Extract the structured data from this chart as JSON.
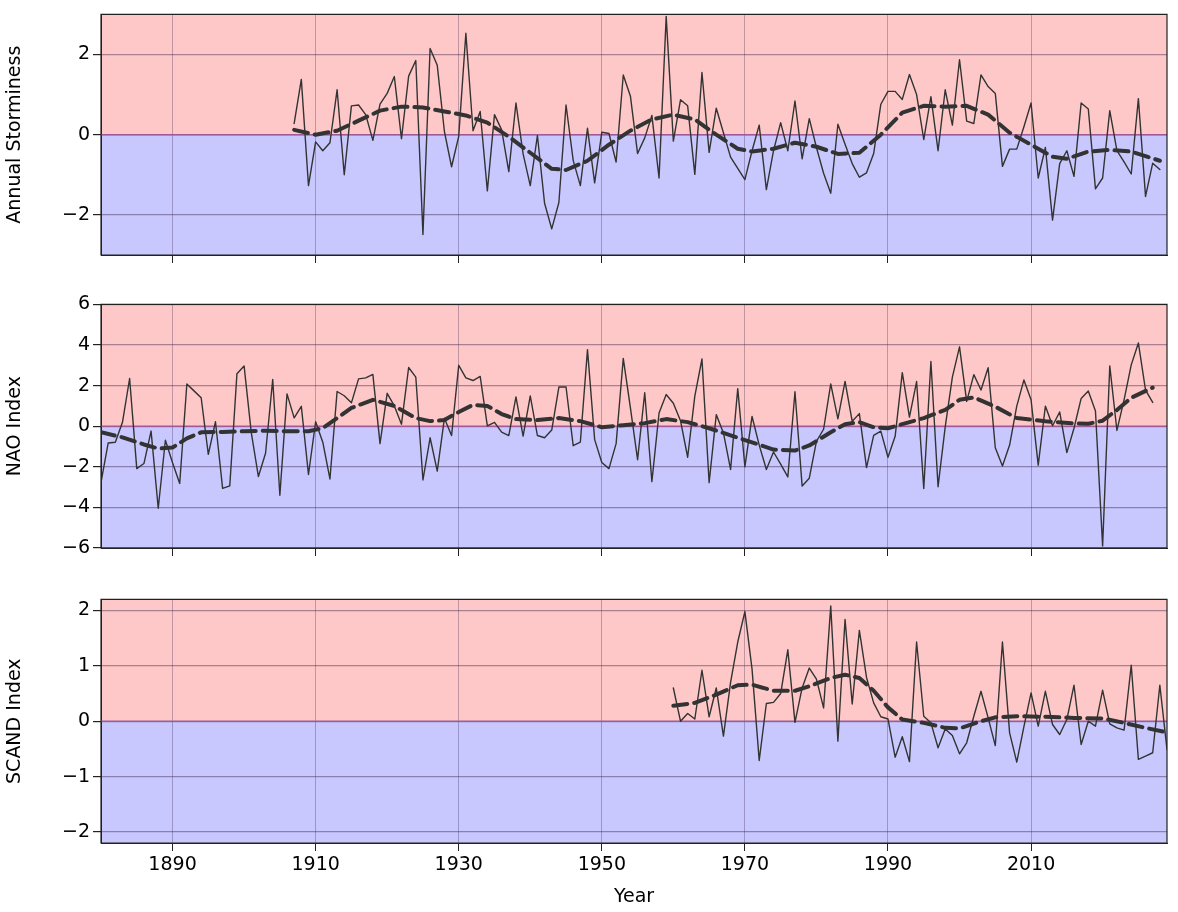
{
  "chart_data": [
    {
      "type": "line",
      "ylabel": "Annual Storminess",
      "xlim": [
        1880,
        2029
      ],
      "xticks": [
        1890,
        1910,
        1930,
        1950,
        1970,
        1990,
        2010
      ],
      "ylim": [
        -3,
        3
      ],
      "yticks": [
        {
          "value": -2,
          "label": "−2"
        },
        0,
        2
      ],
      "grid": true,
      "tick_labels": "y",
      "marker": "none",
      "bands": [
        {
          "axis": "y",
          "from": 0,
          "to": 3,
          "color": "#ffc8c8"
        },
        {
          "axis": "y",
          "from": -3,
          "to": 0,
          "color": "#c8c8ff"
        }
      ],
      "ref_lines": [
        {
          "axis": "y",
          "value": 0,
          "color": "#a05a9a"
        }
      ],
      "series": [
        {
          "type": "line",
          "line_style": "solid",
          "color": "#333333",
          "x": [
            1907,
            1908,
            1909,
            1910,
            1911,
            1912,
            1913,
            1914,
            1915,
            1916,
            1917,
            1918,
            1919,
            1920,
            1921,
            1922,
            1923,
            1924,
            1925,
            1926,
            1927,
            1928,
            1929,
            1930,
            1931,
            1932,
            1933,
            1934,
            1935,
            1936,
            1937,
            1938,
            1939,
            1940,
            1941,
            1942,
            1943,
            1944,
            1945,
            1946,
            1947,
            1948,
            1949,
            1950,
            1951,
            1952,
            1953,
            1954,
            1955,
            1956,
            1957,
            1958,
            1959,
            1960,
            1961,
            1962,
            1963,
            1964,
            1965,
            1966,
            1967,
            1968,
            1969,
            1970,
            1971,
            1972,
            1973,
            1974,
            1975,
            1976,
            1977,
            1978,
            1979,
            1980,
            1981,
            1982,
            1983,
            1984,
            1985,
            1986,
            1987,
            1988,
            1989,
            1990,
            1991,
            1992,
            1993,
            1994,
            1995,
            1996,
            1997,
            1998,
            1999,
            2000,
            2001,
            2002,
            2003,
            2004,
            2005,
            2006,
            2007,
            2008,
            2009,
            2010,
            2011,
            2012,
            2013,
            2014,
            2015,
            2016,
            2017,
            2018,
            2019,
            2020,
            2021,
            2022,
            2023,
            2024,
            2025,
            2026,
            2027,
            2028
          ],
          "values": [
            0.28,
            1.38,
            -1.27,
            -0.18,
            -0.4,
            -0.2,
            1.12,
            -1.0,
            0.72,
            0.74,
            0.5,
            -0.14,
            0.76,
            1.03,
            1.45,
            -0.1,
            1.46,
            1.85,
            -2.49,
            2.15,
            1.73,
            0.08,
            -0.8,
            -0.04,
            2.53,
            0.1,
            0.58,
            -1.4,
            0.5,
            0.12,
            -0.92,
            0.79,
            -0.48,
            -1.27,
            -0.02,
            -1.71,
            -2.35,
            -1.69,
            0.74,
            -0.64,
            -1.27,
            0.16,
            -1.2,
            0.06,
            0.03,
            -0.68,
            1.49,
            0.96,
            -0.47,
            -0.08,
            0.48,
            -1.08,
            2.95,
            -0.16,
            0.87,
            0.72,
            -0.99,
            1.55,
            -0.44,
            0.66,
            0.05,
            -0.56,
            -0.84,
            -1.12,
            -0.4,
            0.24,
            -1.37,
            -0.4,
            0.3,
            -0.4,
            0.84,
            -0.6,
            0.4,
            -0.32,
            -0.96,
            -1.46,
            0.26,
            -0.24,
            -0.72,
            -1.06,
            -0.95,
            -0.47,
            0.76,
            1.08,
            1.08,
            0.88,
            1.5,
            1.0,
            -0.12,
            0.95,
            -0.4,
            1.12,
            0.24,
            1.87,
            0.34,
            0.28,
            1.49,
            1.2,
            1.03,
            -0.79,
            -0.36,
            -0.36,
            0.2,
            0.79,
            -1.08,
            -0.32,
            -2.13,
            -0.72,
            -0.4,
            -1.04,
            0.79,
            0.64,
            -1.35,
            -1.08,
            0.6,
            -0.4,
            -0.68,
            -0.98,
            0.9,
            -1.54,
            -0.71,
            -0.87
          ]
        },
        {
          "type": "line",
          "line_style": "dashed",
          "color": "#333333",
          "x": [
            1907,
            1910,
            1913,
            1916,
            1919,
            1922,
            1925,
            1928,
            1931,
            1934,
            1937,
            1940,
            1943,
            1945,
            1948,
            1951,
            1954,
            1957,
            1960,
            1963,
            1966,
            1969,
            1971,
            1974,
            1977,
            1980,
            1983,
            1986,
            1989,
            1992,
            1995,
            1998,
            2001,
            2004,
            2007,
            2010,
            2013,
            2015,
            2018,
            2021,
            2024,
            2028
          ],
          "values": [
            0.12,
            0.0,
            0.1,
            0.35,
            0.6,
            0.7,
            0.68,
            0.58,
            0.48,
            0.3,
            -0.05,
            -0.45,
            -0.85,
            -0.88,
            -0.65,
            -0.25,
            0.1,
            0.38,
            0.5,
            0.38,
            0.0,
            -0.35,
            -0.42,
            -0.35,
            -0.2,
            -0.3,
            -0.48,
            -0.45,
            0.0,
            0.55,
            0.72,
            0.7,
            0.72,
            0.5,
            0.05,
            -0.25,
            -0.55,
            -0.6,
            -0.42,
            -0.38,
            -0.42,
            -0.65
          ]
        }
      ]
    },
    {
      "type": "line",
      "ylabel": "NAO Index",
      "xlim": [
        1880,
        2029
      ],
      "xticks": [
        1890,
        1910,
        1930,
        1950,
        1970,
        1990,
        2010
      ],
      "ylim": [
        -6,
        6
      ],
      "yticks": [
        {
          "value": -6,
          "label": "−6"
        },
        {
          "value": -4,
          "label": "−4"
        },
        {
          "value": -2,
          "label": "−2"
        },
        0,
        2,
        4,
        6
      ],
      "grid": true,
      "tick_labels": "y",
      "marker": "none",
      "bands": [
        {
          "axis": "y",
          "from": 0,
          "to": 6,
          "color": "#ffc8c8"
        },
        {
          "axis": "y",
          "from": -6,
          "to": 0,
          "color": "#c8c8ff"
        }
      ],
      "ref_lines": [
        {
          "axis": "y",
          "value": 0,
          "color": "#a05a9a"
        }
      ],
      "series": [
        {
          "type": "line",
          "line_style": "solid",
          "color": "#333333",
          "x": [
            1880,
            1881,
            1882,
            1883,
            1884,
            1885,
            1886,
            1887,
            1888,
            1889,
            1890,
            1891,
            1892,
            1893,
            1894,
            1895,
            1896,
            1897,
            1898,
            1899,
            1900,
            1901,
            1902,
            1903,
            1904,
            1905,
            1906,
            1907,
            1908,
            1909,
            1910,
            1911,
            1912,
            1913,
            1914,
            1915,
            1916,
            1917,
            1918,
            1919,
            1920,
            1921,
            1922,
            1923,
            1924,
            1925,
            1926,
            1927,
            1928,
            1929,
            1930,
            1931,
            1932,
            1933,
            1934,
            1935,
            1936,
            1937,
            1938,
            1939,
            1940,
            1941,
            1942,
            1943,
            1944,
            1945,
            1946,
            1947,
            1948,
            1949,
            1950,
            1951,
            1952,
            1953,
            1954,
            1955,
            1956,
            1957,
            1958,
            1959,
            1960,
            1961,
            1962,
            1963,
            1964,
            1965,
            1966,
            1967,
            1968,
            1969,
            1970,
            1971,
            1972,
            1973,
            1974,
            1975,
            1976,
            1977,
            1978,
            1979,
            1980,
            1981,
            1982,
            1983,
            1984,
            1985,
            1986,
            1987,
            1988,
            1989,
            1990,
            1991,
            1992,
            1993,
            1994,
            1995,
            1996,
            1997,
            1998,
            1999,
            2000,
            2001,
            2002,
            2003,
            2004,
            2005,
            2006,
            2007,
            2008,
            2009,
            2010,
            2011,
            2012,
            2013,
            2014,
            2015,
            2016,
            2017,
            2018,
            2019,
            2020,
            2021,
            2022,
            2023,
            2024,
            2025,
            2026,
            2027
          ],
          "values": [
            -2.77,
            -0.83,
            -0.79,
            0.19,
            2.35,
            -2.09,
            -1.84,
            -0.24,
            -4.04,
            -0.69,
            -1.8,
            -2.82,
            2.08,
            1.74,
            1.4,
            -1.39,
            0.22,
            -3.06,
            -2.94,
            2.58,
            2.97,
            -0.3,
            -2.48,
            -1.33,
            2.3,
            -3.4,
            1.59,
            0.41,
            0.98,
            -2.38,
            0.22,
            -0.79,
            -2.6,
            1.71,
            1.5,
            1.15,
            2.33,
            2.38,
            2.55,
            -0.86,
            1.62,
            1.0,
            0.1,
            2.89,
            2.42,
            -2.65,
            -0.57,
            -2.21,
            0.39,
            -0.46,
            3.0,
            2.38,
            2.25,
            2.45,
            0.02,
            0.19,
            -0.29,
            -0.46,
            1.44,
            -0.49,
            1.49,
            -0.46,
            -0.57,
            -0.19,
            1.93,
            1.93,
            -0.96,
            -0.79,
            3.77,
            -0.66,
            -1.79,
            -2.09,
            -0.86,
            3.34,
            0.9,
            -1.65,
            1.65,
            -2.73,
            0.65,
            1.56,
            1.13,
            0.27,
            -1.53,
            1.48,
            3.31,
            -2.78,
            0.57,
            -0.33,
            -2.13,
            1.85,
            -2.0,
            0.48,
            -0.93,
            -2.13,
            -1.27,
            -1.87,
            -2.5,
            1.7,
            -2.95,
            -2.56,
            -0.75,
            -0.15,
            2.08,
            0.36,
            2.21,
            0.24,
            0.62,
            -2.04,
            -0.45,
            -0.24,
            -1.53,
            -0.5,
            2.64,
            0.45,
            2.2,
            -3.07,
            3.19,
            -2.98,
            -0.03,
            2.42,
            3.91,
            1.22,
            2.54,
            1.78,
            2.88,
            -1.06,
            -1.96,
            -0.93,
            0.99,
            2.28,
            1.3,
            -1.92,
            0.99,
            0.02,
            0.7,
            -1.3,
            -0.1,
            1.37,
            1.73,
            0.75,
            -5.9,
            2.97,
            -0.21,
            1.3,
            3.02,
            4.1,
            1.78,
            1.17
          ]
        },
        {
          "type": "line",
          "line_style": "dashed",
          "color": "#333333",
          "x": [
            1880,
            1883,
            1886,
            1888,
            1890,
            1892,
            1894,
            1897,
            1900,
            1903,
            1906,
            1909,
            1911,
            1913,
            1915,
            1918,
            1921,
            1924,
            1926,
            1928,
            1930,
            1932,
            1934,
            1936,
            1938,
            1941,
            1944,
            1947,
            1950,
            1953,
            1956,
            1959,
            1962,
            1965,
            1968,
            1971,
            1974,
            1977,
            1979,
            1982,
            1984,
            1986,
            1988,
            1990,
            1992,
            1995,
            1998,
            2000,
            2002,
            2005,
            2008,
            2012,
            2016,
            2018,
            2020,
            2022,
            2024,
            2027
          ],
          "values": [
            -0.3,
            -0.55,
            -0.9,
            -1.1,
            -1.05,
            -0.6,
            -0.3,
            -0.28,
            -0.25,
            -0.22,
            -0.25,
            -0.25,
            -0.1,
            0.4,
            0.9,
            1.3,
            1.0,
            0.4,
            0.25,
            0.3,
            0.7,
            1.05,
            1.0,
            0.6,
            0.35,
            0.3,
            0.4,
            0.25,
            -0.05,
            0.05,
            0.15,
            0.35,
            0.2,
            -0.1,
            -0.45,
            -0.8,
            -1.15,
            -1.2,
            -0.95,
            -0.3,
            0.1,
            0.2,
            -0.05,
            -0.1,
            0.1,
            0.4,
            0.8,
            1.3,
            1.42,
            0.96,
            0.4,
            0.24,
            0.14,
            0.12,
            0.27,
            0.8,
            1.4,
            1.9
          ]
        }
      ]
    },
    {
      "type": "line",
      "ylabel": "SCAND Index",
      "xlabel": "Year",
      "xlim": [
        1880,
        2029
      ],
      "xticks": [
        1890,
        1910,
        1930,
        1950,
        1970,
        1990,
        2010
      ],
      "ylim": [
        -2.2,
        2.2
      ],
      "yticks": [
        {
          "value": -2,
          "label": "−2"
        },
        {
          "value": -1,
          "label": "−1"
        },
        0,
        1,
        2
      ],
      "grid": true,
      "marker": "none",
      "bands": [
        {
          "axis": "y",
          "from": 0,
          "to": 2.2,
          "color": "#ffc8c8"
        },
        {
          "axis": "y",
          "from": -2.2,
          "to": 0,
          "color": "#c8c8ff"
        }
      ],
      "ref_lines": [
        {
          "axis": "y",
          "value": 0,
          "color": "#a05a9a"
        }
      ],
      "series": [
        {
          "type": "line",
          "line_style": "solid",
          "color": "#333333",
          "x": [
            1960,
            1961,
            1962,
            1963,
            1964,
            1965,
            1966,
            1967,
            1968,
            1969,
            1970,
            1971,
            1972,
            1973,
            1974,
            1975,
            1976,
            1977,
            1978,
            1979,
            1980,
            1981,
            1982,
            1983,
            1984,
            1985,
            1986,
            1987,
            1988,
            1989,
            1990,
            1991,
            1992,
            1993,
            1994,
            1995,
            1996,
            1997,
            1998,
            1999,
            2000,
            2001,
            2002,
            2003,
            2004,
            2005,
            2006,
            2007,
            2008,
            2009,
            2010,
            2011,
            2012,
            2013,
            2014,
            2015,
            2016,
            2017,
            2018,
            2019,
            2020,
            2021,
            2022,
            2023,
            2024,
            2025,
            2026,
            2027,
            2028,
            2029
          ],
          "values": [
            0.6,
            0.0,
            0.14,
            0.04,
            0.92,
            0.08,
            0.6,
            -0.27,
            0.7,
            1.43,
            1.98,
            0.94,
            -0.71,
            0.32,
            0.34,
            0.5,
            1.29,
            -0.02,
            0.6,
            0.96,
            0.76,
            0.24,
            2.08,
            -0.36,
            1.84,
            0.31,
            1.64,
            0.79,
            0.33,
            0.08,
            0.04,
            -0.65,
            -0.28,
            -0.73,
            1.43,
            0.09,
            -0.03,
            -0.48,
            -0.14,
            -0.26,
            -0.59,
            -0.39,
            0.09,
            0.54,
            0.06,
            -0.44,
            1.43,
            -0.21,
            -0.74,
            -0.1,
            0.51,
            -0.09,
            0.54,
            -0.06,
            -0.24,
            0.03,
            0.65,
            -0.42,
            0.0,
            -0.09,
            0.56,
            -0.05,
            -0.12,
            -0.16,
            1.01,
            -0.69,
            -0.63,
            -0.57,
            0.65,
            -0.51
          ]
        },
        {
          "type": "line",
          "line_style": "dashed",
          "color": "#333333",
          "x": [
            1960,
            1963,
            1966,
            1969,
            1971,
            1974,
            1977,
            1979,
            1982,
            1984,
            1986,
            1988,
            1990,
            1992,
            1995,
            1998,
            2000,
            2003,
            2005,
            2008,
            2012,
            2016,
            2020,
            2023,
            2026,
            2029
          ],
          "values": [
            0.28,
            0.33,
            0.48,
            0.65,
            0.66,
            0.55,
            0.55,
            0.63,
            0.78,
            0.84,
            0.78,
            0.55,
            0.25,
            0.03,
            -0.03,
            -0.12,
            -0.13,
            0.0,
            0.07,
            0.09,
            0.08,
            0.06,
            0.05,
            -0.03,
            -0.12,
            -0.2
          ]
        }
      ]
    }
  ]
}
